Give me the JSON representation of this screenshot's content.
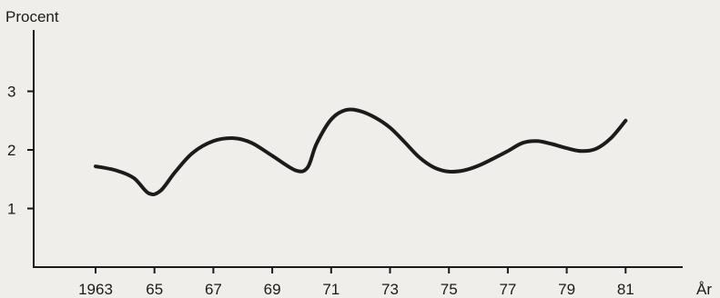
{
  "chart_data": {
    "type": "line",
    "title": "",
    "ylabel": "Procent",
    "xlabel": "År",
    "xlim": [
      1962.5,
      1985
    ],
    "ylim": [
      0,
      3.4
    ],
    "grid": false,
    "x_ticks": [
      {
        "value": 1963,
        "label": "1963"
      },
      {
        "value": 1965,
        "label": "65"
      },
      {
        "value": 1967,
        "label": "67"
      },
      {
        "value": 1969,
        "label": "69"
      },
      {
        "value": 1971,
        "label": "71"
      },
      {
        "value": 1973,
        "label": "73"
      },
      {
        "value": 1975,
        "label": "75"
      },
      {
        "value": 1977,
        "label": "77"
      },
      {
        "value": 1979,
        "label": "79"
      },
      {
        "value": 1981,
        "label": "81"
      }
    ],
    "y_ticks": [
      {
        "value": 1,
        "label": "1"
      },
      {
        "value": 2,
        "label": "2"
      },
      {
        "value": 3,
        "label": "3"
      }
    ],
    "series": [
      {
        "x": [
          1963.0,
          1963.7,
          1964.3,
          1964.8,
          1965.2,
          1965.7,
          1966.3,
          1967.0,
          1967.7,
          1968.3,
          1969.0,
          1969.8,
          1970.2,
          1970.5,
          1971.0,
          1971.5,
          1972.0,
          1972.5,
          1973.0,
          1973.5,
          1974.0,
          1974.5,
          1975.0,
          1975.5,
          1976.0,
          1976.5,
          1977.0,
          1977.5,
          1978.0,
          1978.5,
          1979.0,
          1979.5,
          1980.0,
          1980.5,
          1981.0
        ],
        "values": [
          1.72,
          1.65,
          1.52,
          1.26,
          1.3,
          1.62,
          1.95,
          2.15,
          2.2,
          2.12,
          1.9,
          1.65,
          1.7,
          2.1,
          2.52,
          2.68,
          2.66,
          2.55,
          2.38,
          2.13,
          1.87,
          1.7,
          1.63,
          1.65,
          1.73,
          1.85,
          1.98,
          2.12,
          2.15,
          2.1,
          2.03,
          1.98,
          2.02,
          2.2,
          2.5
        ]
      }
    ]
  }
}
